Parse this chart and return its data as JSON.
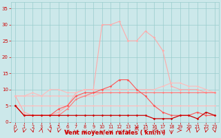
{
  "x": [
    0,
    1,
    2,
    3,
    4,
    5,
    6,
    7,
    8,
    9,
    10,
    11,
    12,
    13,
    14,
    15,
    16,
    17,
    18,
    19,
    20,
    21,
    22,
    23
  ],
  "line_rafales": [
    8,
    3,
    2,
    2,
    2,
    3,
    5,
    9,
    10,
    10,
    30,
    30,
    31,
    25,
    25,
    28,
    26,
    22,
    11,
    10,
    10,
    10,
    9,
    9
  ],
  "line_moyen": [
    5,
    2,
    2,
    2,
    2,
    4,
    5,
    8,
    9,
    9,
    10,
    11,
    13,
    13,
    10,
    8,
    5,
    3,
    2,
    2,
    2,
    3,
    2,
    2
  ],
  "line_upper": [
    8,
    8,
    9,
    8,
    10,
    10,
    9,
    9,
    10,
    10,
    10,
    10,
    10,
    10,
    10,
    10,
    10,
    11,
    12,
    12,
    11,
    11,
    10,
    9
  ],
  "line_mid": [
    8,
    8,
    8,
    8,
    8,
    8,
    8,
    8,
    8,
    8,
    9,
    9,
    9,
    9,
    9,
    9,
    9,
    9,
    9,
    9,
    9,
    9,
    9,
    9
  ],
  "line_lower": [
    5,
    5,
    5,
    5,
    5,
    5,
    5,
    5,
    5,
    5,
    5,
    5,
    5,
    5,
    5,
    5,
    5,
    5,
    5,
    5,
    5,
    5,
    5,
    5
  ],
  "line_dark1": [
    5,
    2,
    2,
    2,
    2,
    2,
    4,
    7,
    8,
    9,
    9,
    9,
    9,
    9,
    9,
    9,
    9,
    9,
    9,
    9,
    9,
    9,
    9,
    9
  ],
  "line_dark2": [
    5,
    2,
    2,
    2,
    2,
    2,
    2,
    2,
    2,
    2,
    2,
    2,
    2,
    2,
    2,
    2,
    1,
    1,
    1,
    2,
    2,
    1,
    3,
    2
  ],
  "color_rafales": "#ffaaaa",
  "color_moyen": "#ff5555",
  "color_upper": "#ffbbbb",
  "color_mid": "#ffbbbb",
  "color_lower": "#ffbbbb",
  "color_dark1": "#ff7777",
  "color_dark2": "#cc0000",
  "bg_color": "#cce8ea",
  "grid_color": "#99cccc",
  "tick_color": "#cc0000",
  "xlabel": "Vent moyen/en rafales ( km/h )",
  "ylim": [
    0,
    37
  ],
  "xlim": [
    -0.5,
    23.5
  ],
  "yticks": [
    0,
    5,
    10,
    15,
    20,
    25,
    30,
    35
  ],
  "xticks": [
    0,
    1,
    2,
    3,
    4,
    5,
    6,
    7,
    8,
    9,
    10,
    11,
    12,
    13,
    14,
    15,
    16,
    17,
    18,
    19,
    20,
    21,
    22,
    23
  ],
  "arrow_angles": [
    225,
    225,
    315,
    45,
    315,
    225,
    270,
    270,
    270,
    270,
    270,
    270,
    270,
    270,
    90,
    225,
    180,
    270,
    270,
    0,
    45,
    225,
    225,
    315
  ]
}
